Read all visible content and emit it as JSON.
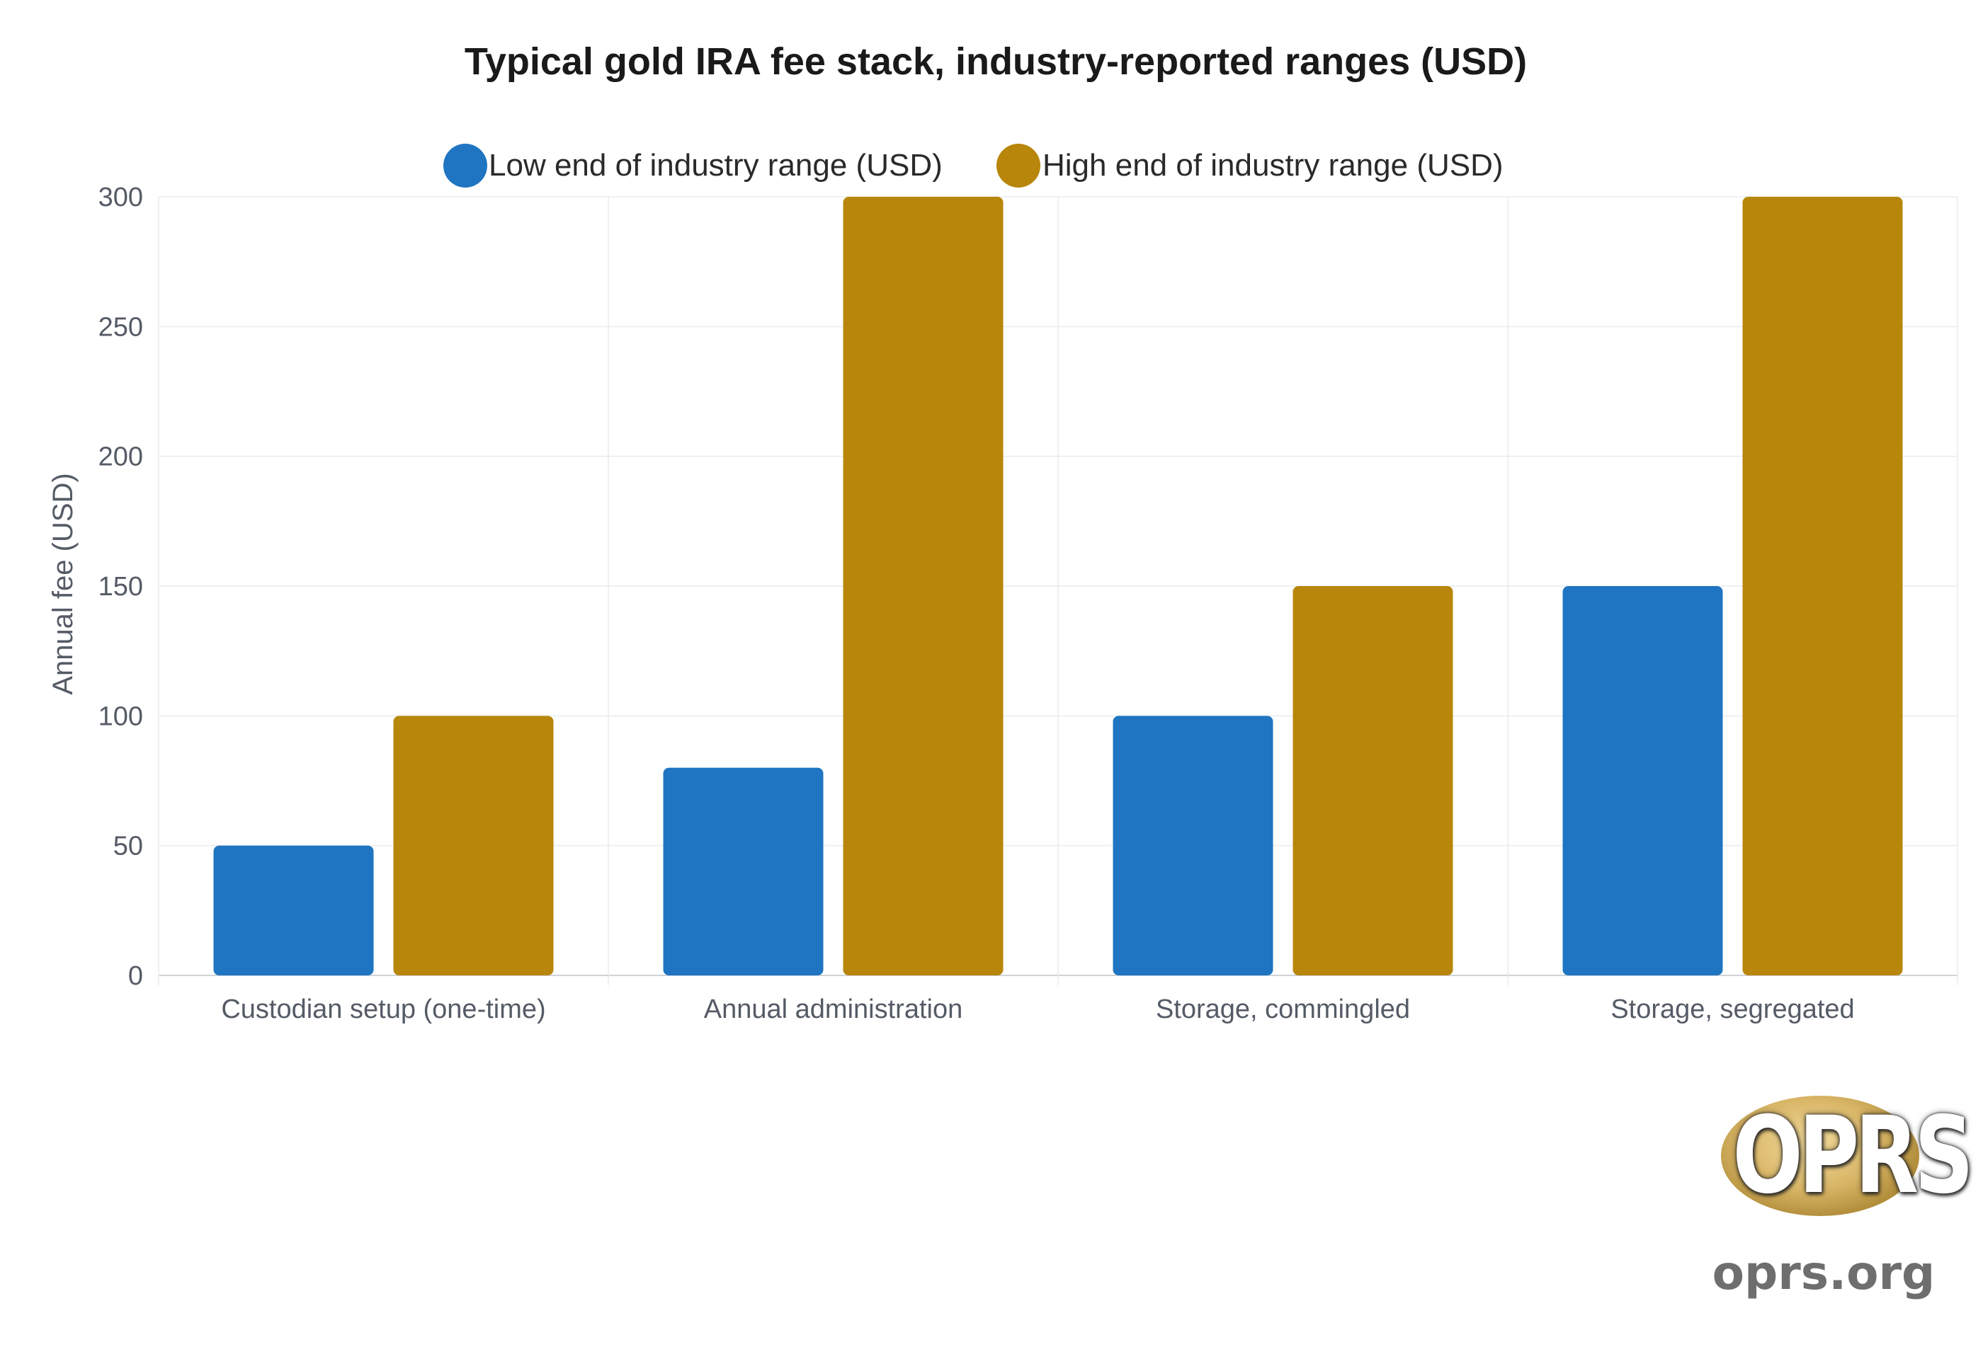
{
  "chart_data": {
    "type": "bar",
    "title": "Typical gold IRA fee stack, industry-reported ranges (USD)",
    "ylabel": "Annual fee (USD)",
    "xlabel": "",
    "ylim": [
      0,
      300
    ],
    "yticks": [
      0,
      50,
      100,
      150,
      200,
      250,
      300
    ],
    "grid": true,
    "legend_position": "top-center",
    "categories": [
      "Custodian setup (one-time)",
      "Annual administration",
      "Storage, commingled",
      "Storage, segregated"
    ],
    "series": [
      {
        "name": "Low end of industry range (USD)",
        "color": "#1f75c1",
        "values": [
          50,
          80,
          100,
          150
        ]
      },
      {
        "name": "High end of industry range (USD)",
        "color": "#b8860b",
        "values": [
          100,
          300,
          150,
          300
        ]
      }
    ]
  },
  "logo": {
    "text": "OPRS",
    "url": "oprs.org"
  }
}
